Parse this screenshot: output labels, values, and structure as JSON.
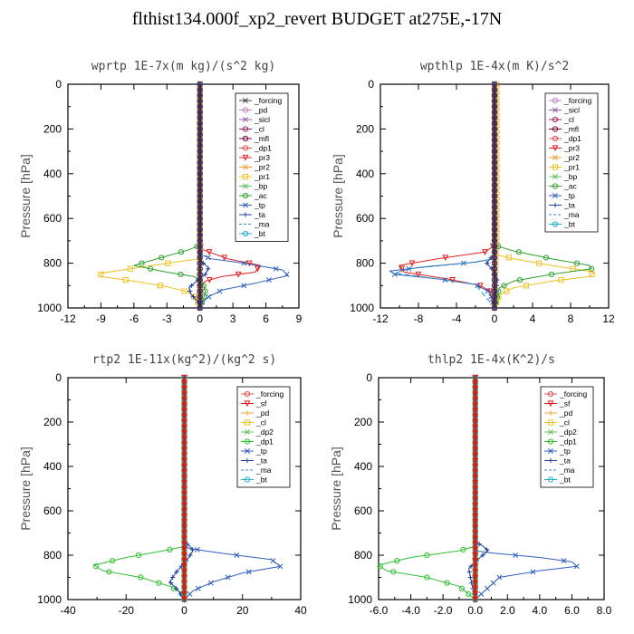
{
  "page": {
    "title": "flthist134.000f_xp2_revert  BUDGET at275E,-17N"
  },
  "chart_data": [
    {
      "type": "line",
      "title": "wprtp   1E-7x(m kg)/(s^2 kg)",
      "ylabel": "Pressure [hPa]",
      "xlim": [
        -12,
        9
      ],
      "ylim": [
        1000,
        0
      ],
      "y_inverted": true,
      "xticks": [
        "-12",
        "-9",
        "-6",
        "-3",
        "0",
        "3",
        "6",
        "9"
      ],
      "xtick_values": [
        -12,
        -9,
        -6,
        -3,
        0,
        3,
        6,
        9
      ],
      "yticks": [
        "0",
        "200",
        "400",
        "600",
        "800",
        "1000"
      ],
      "ytick_values": [
        0,
        200,
        400,
        600,
        800,
        1000
      ],
      "legend_position": "top-right",
      "series": [
        {
          "name": "_forcing",
          "color": "#444444",
          "marker": "x",
          "dash": "",
          "x": [
            0,
            0
          ],
          "y": [
            0,
            1000
          ]
        },
        {
          "name": "_pd",
          "color": "#c080c0",
          "marker": "o",
          "dash": "",
          "x": [
            0,
            0
          ],
          "y": [
            0,
            1000
          ]
        },
        {
          "name": "_sicl",
          "color": "#9060b0",
          "marker": "x",
          "dash": "",
          "x": [
            0,
            0
          ],
          "y": [
            0,
            1000
          ]
        },
        {
          "name": "_cl",
          "color": "#a02060",
          "marker": "o",
          "dash": "",
          "x": [
            0,
            0
          ],
          "y": [
            0,
            1000
          ]
        },
        {
          "name": "_mfl",
          "color": "#800040",
          "marker": "o",
          "dash": "",
          "x": [
            0,
            0
          ],
          "y": [
            0,
            1000
          ]
        },
        {
          "name": "_dp1",
          "color": "#e05050",
          "marker": "o",
          "dash": "",
          "x": [
            0,
            0,
            0,
            0
          ],
          "y": [
            0,
            700,
            900,
            1000
          ]
        },
        {
          "name": "_pr3",
          "color": "#e02020",
          "marker": "v",
          "dash": "",
          "x": [
            0,
            0,
            0.3,
            2.5,
            5.5,
            5.0,
            2.0,
            0.5,
            0,
            0
          ],
          "y": [
            0,
            720,
            740,
            780,
            810,
            840,
            860,
            880,
            900,
            1000
          ]
        },
        {
          "name": "_pr2",
          "color": "#f0a030",
          "marker": "x",
          "dash": "",
          "x": [
            0,
            0,
            0
          ],
          "y": [
            0,
            700,
            1000
          ]
        },
        {
          "name": "_pr1",
          "color": "#f0c020",
          "marker": "s",
          "dash": "",
          "x": [
            0,
            0,
            -1.5,
            -5.0,
            -9.0,
            -9.0,
            -6.0,
            -3.0,
            -1.0,
            -0.3,
            0
          ],
          "y": [
            0,
            780,
            790,
            815,
            845,
            860,
            880,
            905,
            930,
            960,
            1000
          ]
        },
        {
          "name": "_bp",
          "color": "#60c060",
          "marker": "x",
          "dash": "",
          "x": [
            0,
            0
          ],
          "y": [
            0,
            1000
          ]
        },
        {
          "name": "_ac",
          "color": "#30a030",
          "marker": "o",
          "dash": "",
          "x": [
            0,
            0,
            -1.0,
            -3.5,
            -6.0,
            -3.0,
            -0.5,
            0.3,
            0.5,
            0.3,
            0
          ],
          "y": [
            0,
            720,
            740,
            775,
            810,
            840,
            860,
            890,
            930,
            960,
            1000
          ]
        },
        {
          "name": "_tp",
          "color": "#3060c0",
          "marker": "x",
          "dash": "",
          "x": [
            0,
            0,
            1.0,
            4.0,
            7.5,
            8.0,
            5.0,
            2.0,
            0.8,
            0.2,
            0
          ],
          "y": [
            0,
            760,
            780,
            800,
            830,
            855,
            890,
            920,
            950,
            975,
            1000
          ]
        },
        {
          "name": "_ta",
          "color": "#2040a0",
          "marker": "+",
          "dash": "",
          "x": [
            0,
            0,
            0.3,
            0.8,
            0.5,
            -0.3,
            -1.0,
            -0.8,
            -0.2,
            0
          ],
          "y": [
            0,
            780,
            800,
            820,
            850,
            880,
            910,
            940,
            970,
            1000
          ]
        },
        {
          "name": "_ma",
          "color": "#3090c0",
          "marker": "",
          "dash": "6,3",
          "x": [
            0,
            0,
            0
          ],
          "y": [
            0,
            500,
            1000
          ]
        },
        {
          "name": "_bt",
          "color": "#20b0d0",
          "marker": "o",
          "dash": "",
          "x": [
            0,
            0
          ],
          "y": [
            0,
            1000
          ]
        }
      ]
    },
    {
      "type": "line",
      "title": "wpthlp   1E-4x(m K)/s^2",
      "ylabel": "Pressure [hPa]",
      "xlim": [
        -12,
        12
      ],
      "ylim": [
        1000,
        0
      ],
      "y_inverted": true,
      "xticks": [
        "-12",
        "-8",
        "-4",
        "0",
        "4",
        "8",
        "12"
      ],
      "xtick_values": [
        -12,
        -8,
        -4,
        0,
        4,
        8,
        12
      ],
      "yticks": [
        "0",
        "200",
        "400",
        "600",
        "800",
        "1000"
      ],
      "ytick_values": [
        0,
        200,
        400,
        600,
        800,
        1000
      ],
      "legend_position": "top-right",
      "series": [
        {
          "name": "_forcing",
          "color": "#c080c0",
          "marker": "o",
          "dash": "",
          "x": [
            0,
            0
          ],
          "y": [
            0,
            1000
          ]
        },
        {
          "name": "_sicl",
          "color": "#9060b0",
          "marker": "x",
          "dash": "",
          "x": [
            0,
            0
          ],
          "y": [
            0,
            1000
          ]
        },
        {
          "name": "_cl",
          "color": "#a02060",
          "marker": "o",
          "dash": "",
          "x": [
            0,
            0
          ],
          "y": [
            0,
            1000
          ]
        },
        {
          "name": "_mfl",
          "color": "#800040",
          "marker": "o",
          "dash": "",
          "x": [
            0,
            0
          ],
          "y": [
            0,
            1000
          ]
        },
        {
          "name": "_dp1",
          "color": "#e05050",
          "marker": "o",
          "dash": "",
          "x": [
            0,
            0
          ],
          "y": [
            0,
            1000
          ]
        },
        {
          "name": "_pr3",
          "color": "#e02020",
          "marker": "v",
          "dash": "",
          "x": [
            0,
            0,
            -1.0,
            -6.0,
            -10.0,
            -9.5,
            -5.0,
            -1.5,
            -0.3,
            0
          ],
          "y": [
            0,
            720,
            750,
            780,
            810,
            840,
            870,
            900,
            930,
            1000
          ]
        },
        {
          "name": "_pr2",
          "color": "#f0a030",
          "marker": "x",
          "dash": "",
          "x": [
            0.3,
            0.3,
            0
          ],
          "y": [
            0,
            700,
            1000
          ]
        },
        {
          "name": "_pr1",
          "color": "#f0c020",
          "marker": "s",
          "dash": "",
          "x": [
            0,
            0,
            2.0,
            6.0,
            10.5,
            10.0,
            6.0,
            2.0,
            0.5,
            0
          ],
          "y": [
            0,
            760,
            780,
            810,
            840,
            860,
            880,
            910,
            940,
            1000
          ]
        },
        {
          "name": "_bp",
          "color": "#60c060",
          "marker": "x",
          "dash": "",
          "x": [
            0,
            0
          ],
          "y": [
            0,
            1000
          ]
        },
        {
          "name": "_ac",
          "color": "#30a030",
          "marker": "o",
          "dash": "",
          "x": [
            0,
            0,
            2.0,
            6.0,
            10.0,
            10.2,
            6.0,
            2.0,
            0.5,
            0
          ],
          "y": [
            0,
            720,
            745,
            780,
            810,
            825,
            850,
            880,
            910,
            1000
          ]
        },
        {
          "name": "_tp",
          "color": "#3060c0",
          "marker": "x",
          "dash": "",
          "x": [
            0,
            0,
            -2.0,
            -7.0,
            -11.0,
            -10.5,
            -6.0,
            -2.0,
            -0.5,
            0
          ],
          "y": [
            0,
            780,
            795,
            815,
            835,
            850,
            870,
            895,
            930,
            1000
          ]
        },
        {
          "name": "_ta",
          "color": "#2040a0",
          "marker": "+",
          "dash": "",
          "x": [
            0,
            0,
            -0.5,
            -0.8,
            -0.2,
            0.3,
            0
          ],
          "y": [
            0,
            760,
            780,
            800,
            830,
            870,
            1000
          ]
        },
        {
          "name": "_ma",
          "color": "#3090c0",
          "marker": "",
          "dash": "6,3",
          "x": [
            0,
            0,
            -3.0,
            -9.0,
            -10.5,
            -6.0,
            -2.0,
            0
          ],
          "y": [
            0,
            780,
            800,
            825,
            845,
            870,
            895,
            1000
          ]
        },
        {
          "name": "_bt",
          "color": "#20b0d0",
          "marker": "o",
          "dash": "",
          "x": [
            0,
            0
          ],
          "y": [
            0,
            1000
          ]
        }
      ]
    },
    {
      "type": "line",
      "title": "rtp2   1E-11x(kg^2)/(kg^2 s)",
      "ylabel": "Pressure [hPa]",
      "xlim": [
        -40,
        40
      ],
      "ylim": [
        1000,
        0
      ],
      "y_inverted": true,
      "xticks": [
        "-40",
        "-20",
        "0",
        "20",
        "40"
      ],
      "xtick_values": [
        -40,
        -20,
        0,
        20,
        40
      ],
      "yticks": [
        "0",
        "200",
        "400",
        "600",
        "800",
        "1000"
      ],
      "ytick_values": [
        0,
        200,
        400,
        600,
        800,
        1000
      ],
      "legend_position": "top-right",
      "series": [
        {
          "name": "_forcing",
          "color": "#e05050",
          "marker": "o",
          "dash": "",
          "x": [
            0,
            0
          ],
          "y": [
            0,
            1000
          ]
        },
        {
          "name": "_sf",
          "color": "#e02020",
          "marker": "v",
          "dash": "",
          "x": [
            0,
            0
          ],
          "y": [
            0,
            1000
          ]
        },
        {
          "name": "_pd",
          "color": "#f0a030",
          "marker": "+",
          "dash": "",
          "x": [
            0,
            0
          ],
          "y": [
            0,
            1000
          ]
        },
        {
          "name": "_cl",
          "color": "#f0c020",
          "marker": "s",
          "dash": "",
          "x": [
            0,
            0
          ],
          "y": [
            0,
            1000
          ]
        },
        {
          "name": "_dp2",
          "color": "#60c060",
          "marker": "x",
          "dash": "",
          "x": [
            0,
            0
          ],
          "y": [
            0,
            1000
          ]
        },
        {
          "name": "_dp1",
          "color": "#30c030",
          "marker": "o",
          "dash": "",
          "x": [
            0,
            0,
            -5.0,
            -20.0,
            -31.0,
            -28.0,
            -15.0,
            -5.0,
            -1.0,
            0
          ],
          "y": [
            0,
            760,
            775,
            810,
            845,
            870,
            900,
            940,
            970,
            1000
          ]
        },
        {
          "name": "_tp",
          "color": "#3060c0",
          "marker": "x",
          "dash": "",
          "x": [
            0,
            0,
            2.0,
            12.0,
            30.0,
            33.0,
            20.0,
            10.0,
            3.0,
            0
          ],
          "y": [
            0,
            760,
            770,
            790,
            820,
            850,
            880,
            920,
            960,
            1000
          ]
        },
        {
          "name": "_ta",
          "color": "#2040a0",
          "marker": "+",
          "dash": "",
          "x": [
            0,
            0,
            2.0,
            3.0,
            1.0,
            -3.0,
            -5.0,
            -2.0,
            0
          ],
          "y": [
            0,
            740,
            760,
            780,
            820,
            880,
            920,
            960,
            1000
          ]
        },
        {
          "name": "_ma",
          "color": "#3090c0",
          "marker": "",
          "dash": "6,3",
          "x": [
            0,
            0,
            0
          ],
          "y": [
            0,
            500,
            1000
          ]
        },
        {
          "name": "_bt",
          "color": "#20b0d0",
          "marker": "o",
          "dash": "",
          "x": [
            0,
            0
          ],
          "y": [
            0,
            1000
          ]
        }
      ],
      "overlay": {
        "color": "#d02010",
        "x": 0
      }
    },
    {
      "type": "line",
      "title": "thlp2   1E-4x(K^2)/s",
      "ylabel": "Pressure [hPa]",
      "xlim": [
        -6.0,
        8.0
      ],
      "ylim": [
        1000,
        0
      ],
      "y_inverted": true,
      "xticks": [
        "-6.0",
        "-4.0",
        "-2.0",
        "0.0",
        "2.0",
        "4.0",
        "6.0",
        "8.0"
      ],
      "xtick_values": [
        -6,
        -4,
        -2,
        0,
        2,
        4,
        6,
        8
      ],
      "yticks": [
        "0",
        "200",
        "400",
        "600",
        "800",
        "1000"
      ],
      "ytick_values": [
        0,
        200,
        400,
        600,
        800,
        1000
      ],
      "legend_position": "top-right",
      "series": [
        {
          "name": "_forcing",
          "color": "#e05050",
          "marker": "o",
          "dash": "",
          "x": [
            0,
            0
          ],
          "y": [
            0,
            1000
          ]
        },
        {
          "name": "_sf",
          "color": "#e02020",
          "marker": "v",
          "dash": "",
          "x": [
            0,
            0
          ],
          "y": [
            0,
            1000
          ]
        },
        {
          "name": "_pd",
          "color": "#f0a030",
          "marker": "+",
          "dash": "",
          "x": [
            0,
            0
          ],
          "y": [
            0,
            1000
          ]
        },
        {
          "name": "_cl",
          "color": "#f0c020",
          "marker": "s",
          "dash": "",
          "x": [
            0,
            0
          ],
          "y": [
            0,
            1000
          ]
        },
        {
          "name": "_dp2",
          "color": "#60c060",
          "marker": "x",
          "dash": "",
          "x": [
            0,
            0
          ],
          "y": [
            0,
            1000
          ]
        },
        {
          "name": "_dp1",
          "color": "#30c030",
          "marker": "o",
          "dash": "",
          "x": [
            0,
            0,
            -1.0,
            -4.0,
            -6.0,
            -5.5,
            -3.0,
            -1.0,
            0
          ],
          "y": [
            0,
            760,
            780,
            810,
            845,
            870,
            900,
            940,
            1000
          ]
        },
        {
          "name": "_tp",
          "color": "#3060c0",
          "marker": "x",
          "dash": "",
          "x": [
            0,
            0,
            1.0,
            4.0,
            6.0,
            6.3,
            4.0,
            1.5,
            0
          ],
          "y": [
            0,
            780,
            790,
            810,
            830,
            850,
            870,
            900,
            1000
          ]
        },
        {
          "name": "_ta",
          "color": "#2040a0",
          "marker": "+",
          "dash": "",
          "x": [
            0,
            0,
            0.5,
            0.8,
            0.3,
            -0.4,
            -0.3,
            0
          ],
          "y": [
            0,
            740,
            760,
            780,
            810,
            860,
            900,
            1000
          ]
        },
        {
          "name": "_ma",
          "color": "#3090c0",
          "marker": "",
          "dash": "6,3",
          "x": [
            0,
            0,
            0
          ],
          "y": [
            0,
            500,
            1000
          ]
        },
        {
          "name": "_bt",
          "color": "#20b0d0",
          "marker": "o",
          "dash": "",
          "x": [
            0,
            0
          ],
          "y": [
            0,
            1000
          ]
        }
      ],
      "overlay": {
        "color": "#d02010",
        "x": 0
      }
    }
  ]
}
